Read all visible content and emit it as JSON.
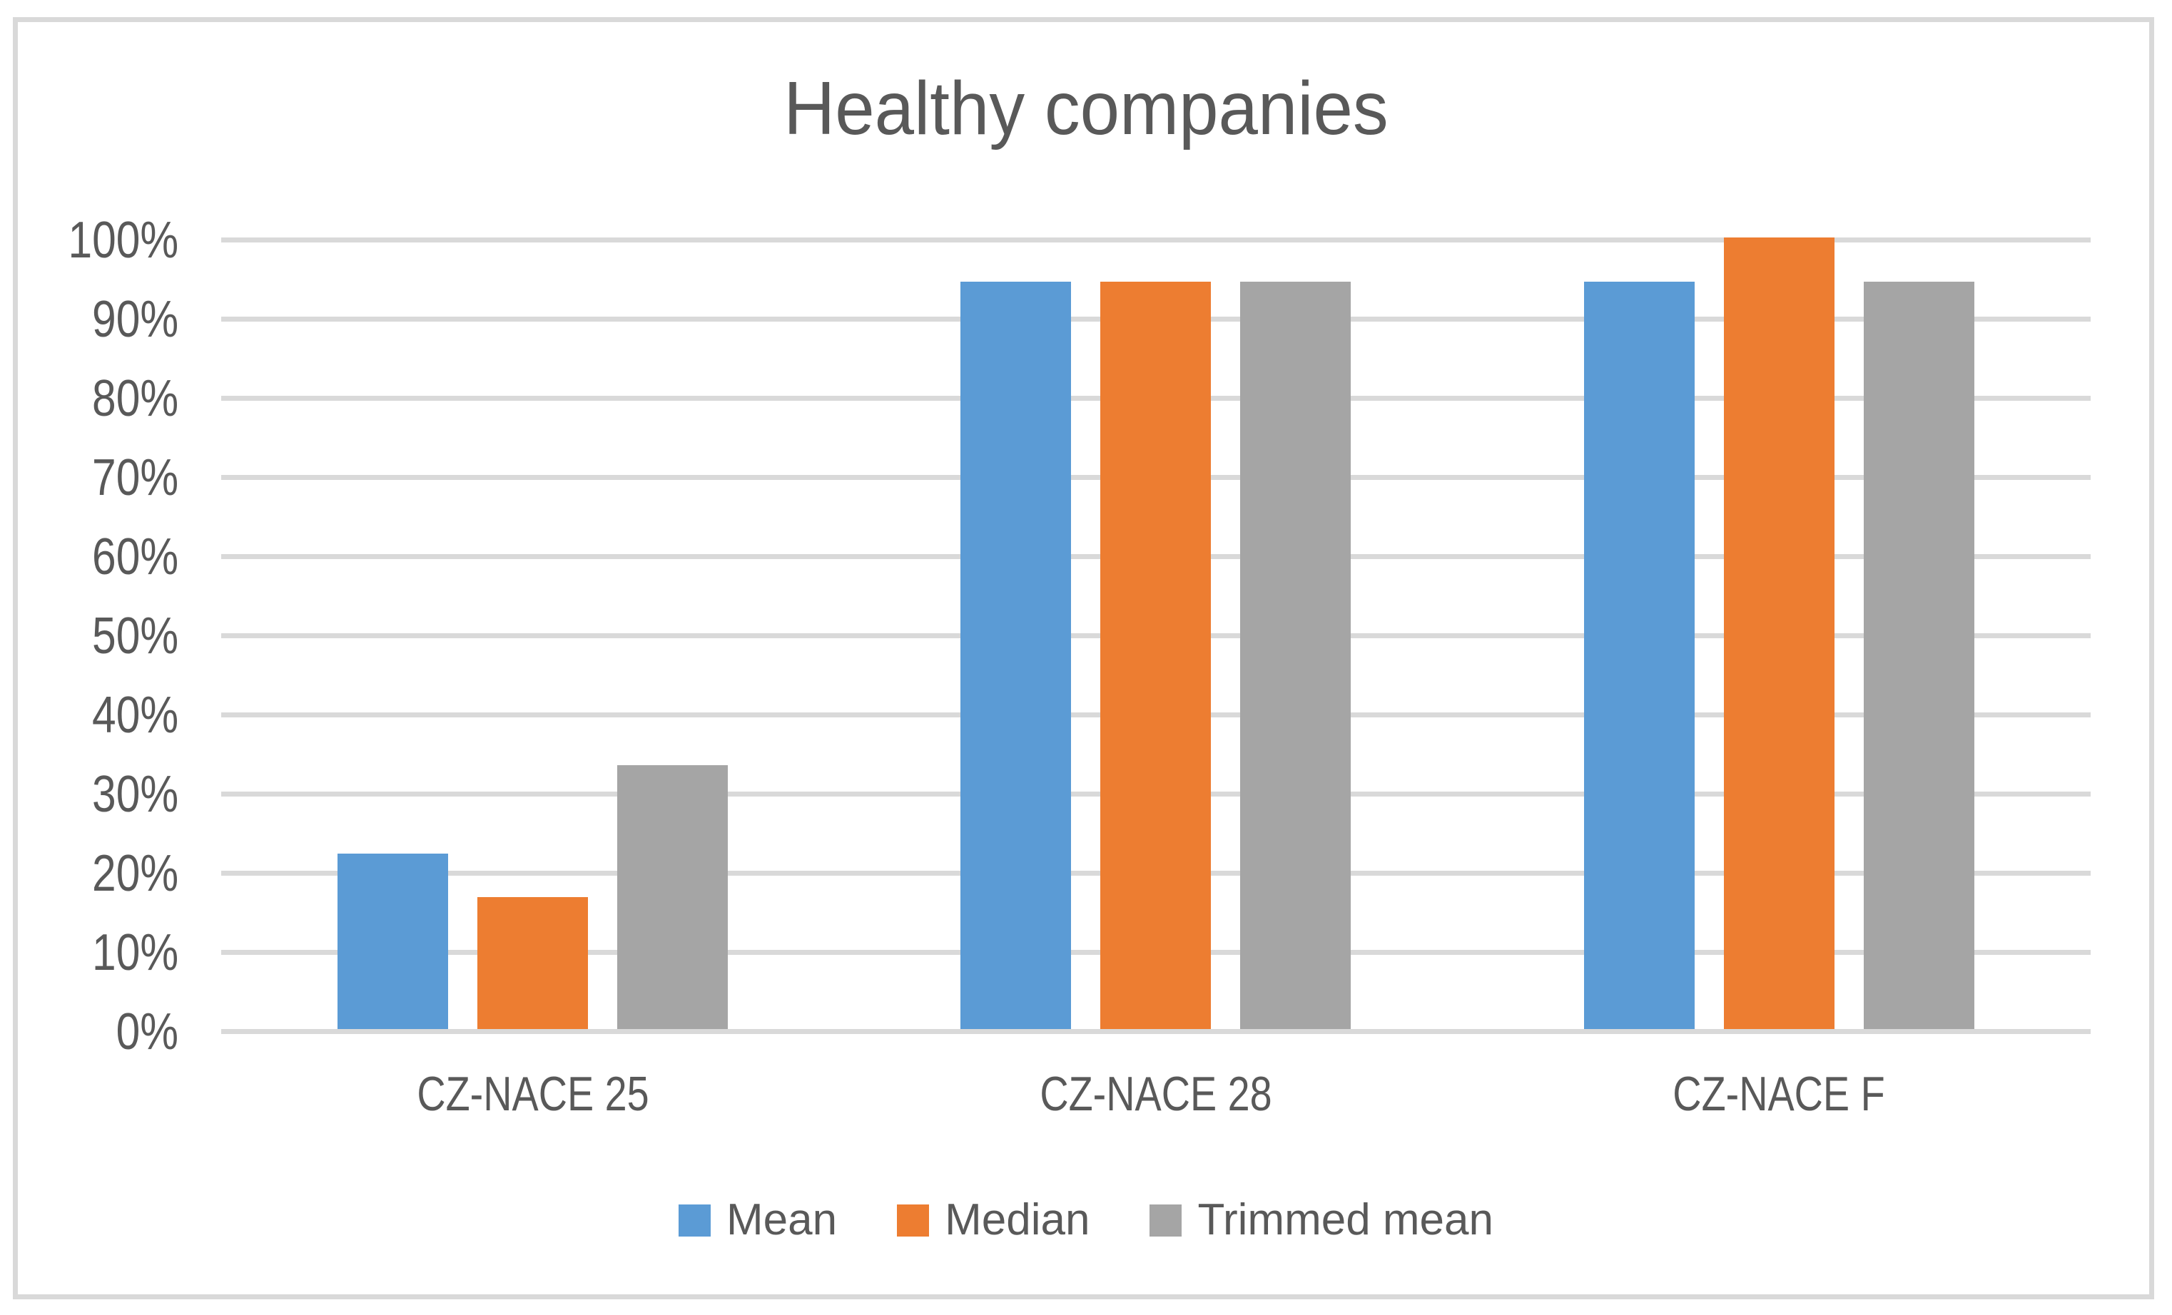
{
  "chart_data": {
    "type": "bar",
    "title": "Healthy companies",
    "categories": [
      "CZ-NACE 25",
      "CZ-NACE 28",
      "CZ-NACE F"
    ],
    "series": [
      {
        "name": "Mean",
        "color": "#5B9BD5",
        "values": [
          22.2,
          94.4,
          94.4
        ]
      },
      {
        "name": "Median",
        "color": "#ED7D31",
        "values": [
          16.7,
          94.4,
          100.0
        ]
      },
      {
        "name": "Trimmed mean",
        "color": "#A5A5A5",
        "values": [
          33.3,
          94.4,
          94.4
        ]
      }
    ],
    "xlabel": "",
    "ylabel": "",
    "ylim": [
      0,
      100
    ],
    "ytick_step": 10,
    "ytick_labels": [
      "0%",
      "10%",
      "20%",
      "30%",
      "40%",
      "50%",
      "60%",
      "70%",
      "80%",
      "90%",
      "100%"
    ],
    "ytick_format": "percent",
    "grid": true,
    "legend_position": "bottom"
  },
  "style": {
    "text_color": "#595959",
    "gridline_color": "#D9D9D9",
    "border_color": "#D9D9D9",
    "background": "#FFFFFF"
  }
}
